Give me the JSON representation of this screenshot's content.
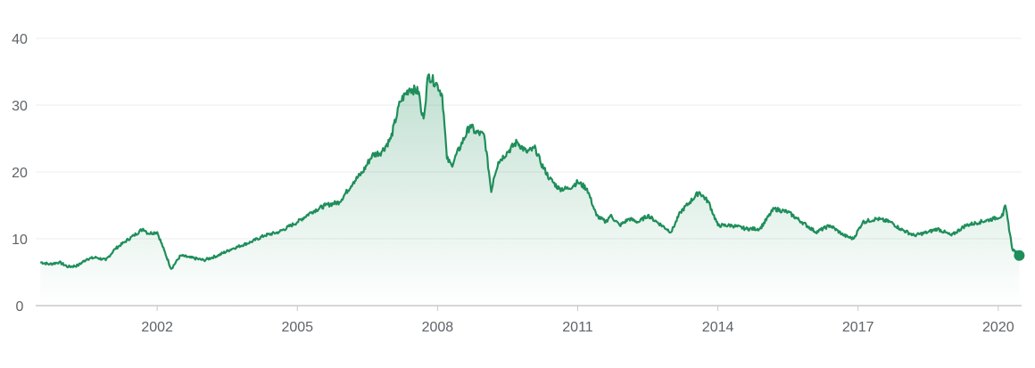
{
  "chart_data": {
    "type": "area",
    "title": "",
    "xlabel": "",
    "ylabel": "",
    "ylim": [
      0,
      40
    ],
    "xlim": [
      1999.4,
      2020.5
    ],
    "y_ticks": [
      "0",
      "10",
      "20",
      "30",
      "40"
    ],
    "x_ticks": [
      "2002",
      "2005",
      "2008",
      "2011",
      "2014",
      "2017",
      "2020"
    ],
    "grid": true,
    "colors": {
      "line": "#1e8e5a",
      "fill": "#1e8e5a",
      "grid": "#ececec",
      "axis": "#c8c8c8",
      "text": "#5f6368"
    },
    "series": [
      {
        "x": [
          1999.5,
          1999.7,
          1999.9,
          2000.1,
          2000.3,
          2000.5,
          2000.7,
          2000.9,
          2001.1,
          2001.3,
          2001.5,
          2001.7,
          2001.75,
          2001.8,
          2002.0,
          2002.3,
          2002.5,
          2002.7,
          2003.0,
          2003.3,
          2003.6,
          2004.0,
          2004.3,
          2004.6,
          2005.0,
          2005.3,
          2005.6,
          2005.9,
          2006.2,
          2006.4,
          2006.6,
          2006.8,
          2007.0,
          2007.2,
          2007.4,
          2007.6,
          2007.65,
          2007.7,
          2007.8,
          2008.0,
          2008.1,
          2008.15,
          2008.2,
          2008.3,
          2008.5,
          2008.7,
          2008.8,
          2009.0,
          2009.1,
          2009.15,
          2009.2,
          2009.3,
          2009.5,
          2009.7,
          2009.9,
          2010.1,
          2010.2,
          2010.4,
          2010.6,
          2010.8,
          2011.0,
          2011.2,
          2011.4,
          2011.6,
          2011.7,
          2011.9,
          2012.1,
          2012.3,
          2012.5,
          2012.7,
          2013.0,
          2013.2,
          2013.4,
          2013.6,
          2013.8,
          2014.0,
          2014.3,
          2014.6,
          2014.9,
          2015.2,
          2015.5,
          2015.8,
          2016.1,
          2016.4,
          2016.7,
          2016.9,
          2017.1,
          2017.4,
          2017.7,
          2017.9,
          2018.2,
          2018.5,
          2018.7,
          2019.0,
          2019.3,
          2019.6,
          2019.9,
          2020.1,
          2020.15,
          2020.2,
          2020.3,
          2020.45
        ],
        "values": [
          6.5,
          6.2,
          6.5,
          5.8,
          6.0,
          7.0,
          7.2,
          6.8,
          8.5,
          9.5,
          10.5,
          11.5,
          11.2,
          10.8,
          11.0,
          5.5,
          7.5,
          7.2,
          6.8,
          7.5,
          8.5,
          9.5,
          10.5,
          11.0,
          12.5,
          14.0,
          15.0,
          15.5,
          18.5,
          20.0,
          22.5,
          23.0,
          25.0,
          30.5,
          32.5,
          32.0,
          29.0,
          28.0,
          34.5,
          33.0,
          31.5,
          27.0,
          22.0,
          21.0,
          24.0,
          27.0,
          26.0,
          25.5,
          20.0,
          17.0,
          19.0,
          21.5,
          23.0,
          24.5,
          23.0,
          23.5,
          21.5,
          19.0,
          17.5,
          17.5,
          18.5,
          17.5,
          13.5,
          12.5,
          13.5,
          12.0,
          13.0,
          12.5,
          13.5,
          12.5,
          11.0,
          14.0,
          15.5,
          17.0,
          15.5,
          12.0,
          12.0,
          11.5,
          11.5,
          14.5,
          14.0,
          12.5,
          11.0,
          12.0,
          10.5,
          10.0,
          12.5,
          13.0,
          12.5,
          11.5,
          10.5,
          11.0,
          11.5,
          10.5,
          12.0,
          12.5,
          13.0,
          13.5,
          15.0,
          13.0,
          8.5,
          7.5
        ]
      }
    ]
  }
}
